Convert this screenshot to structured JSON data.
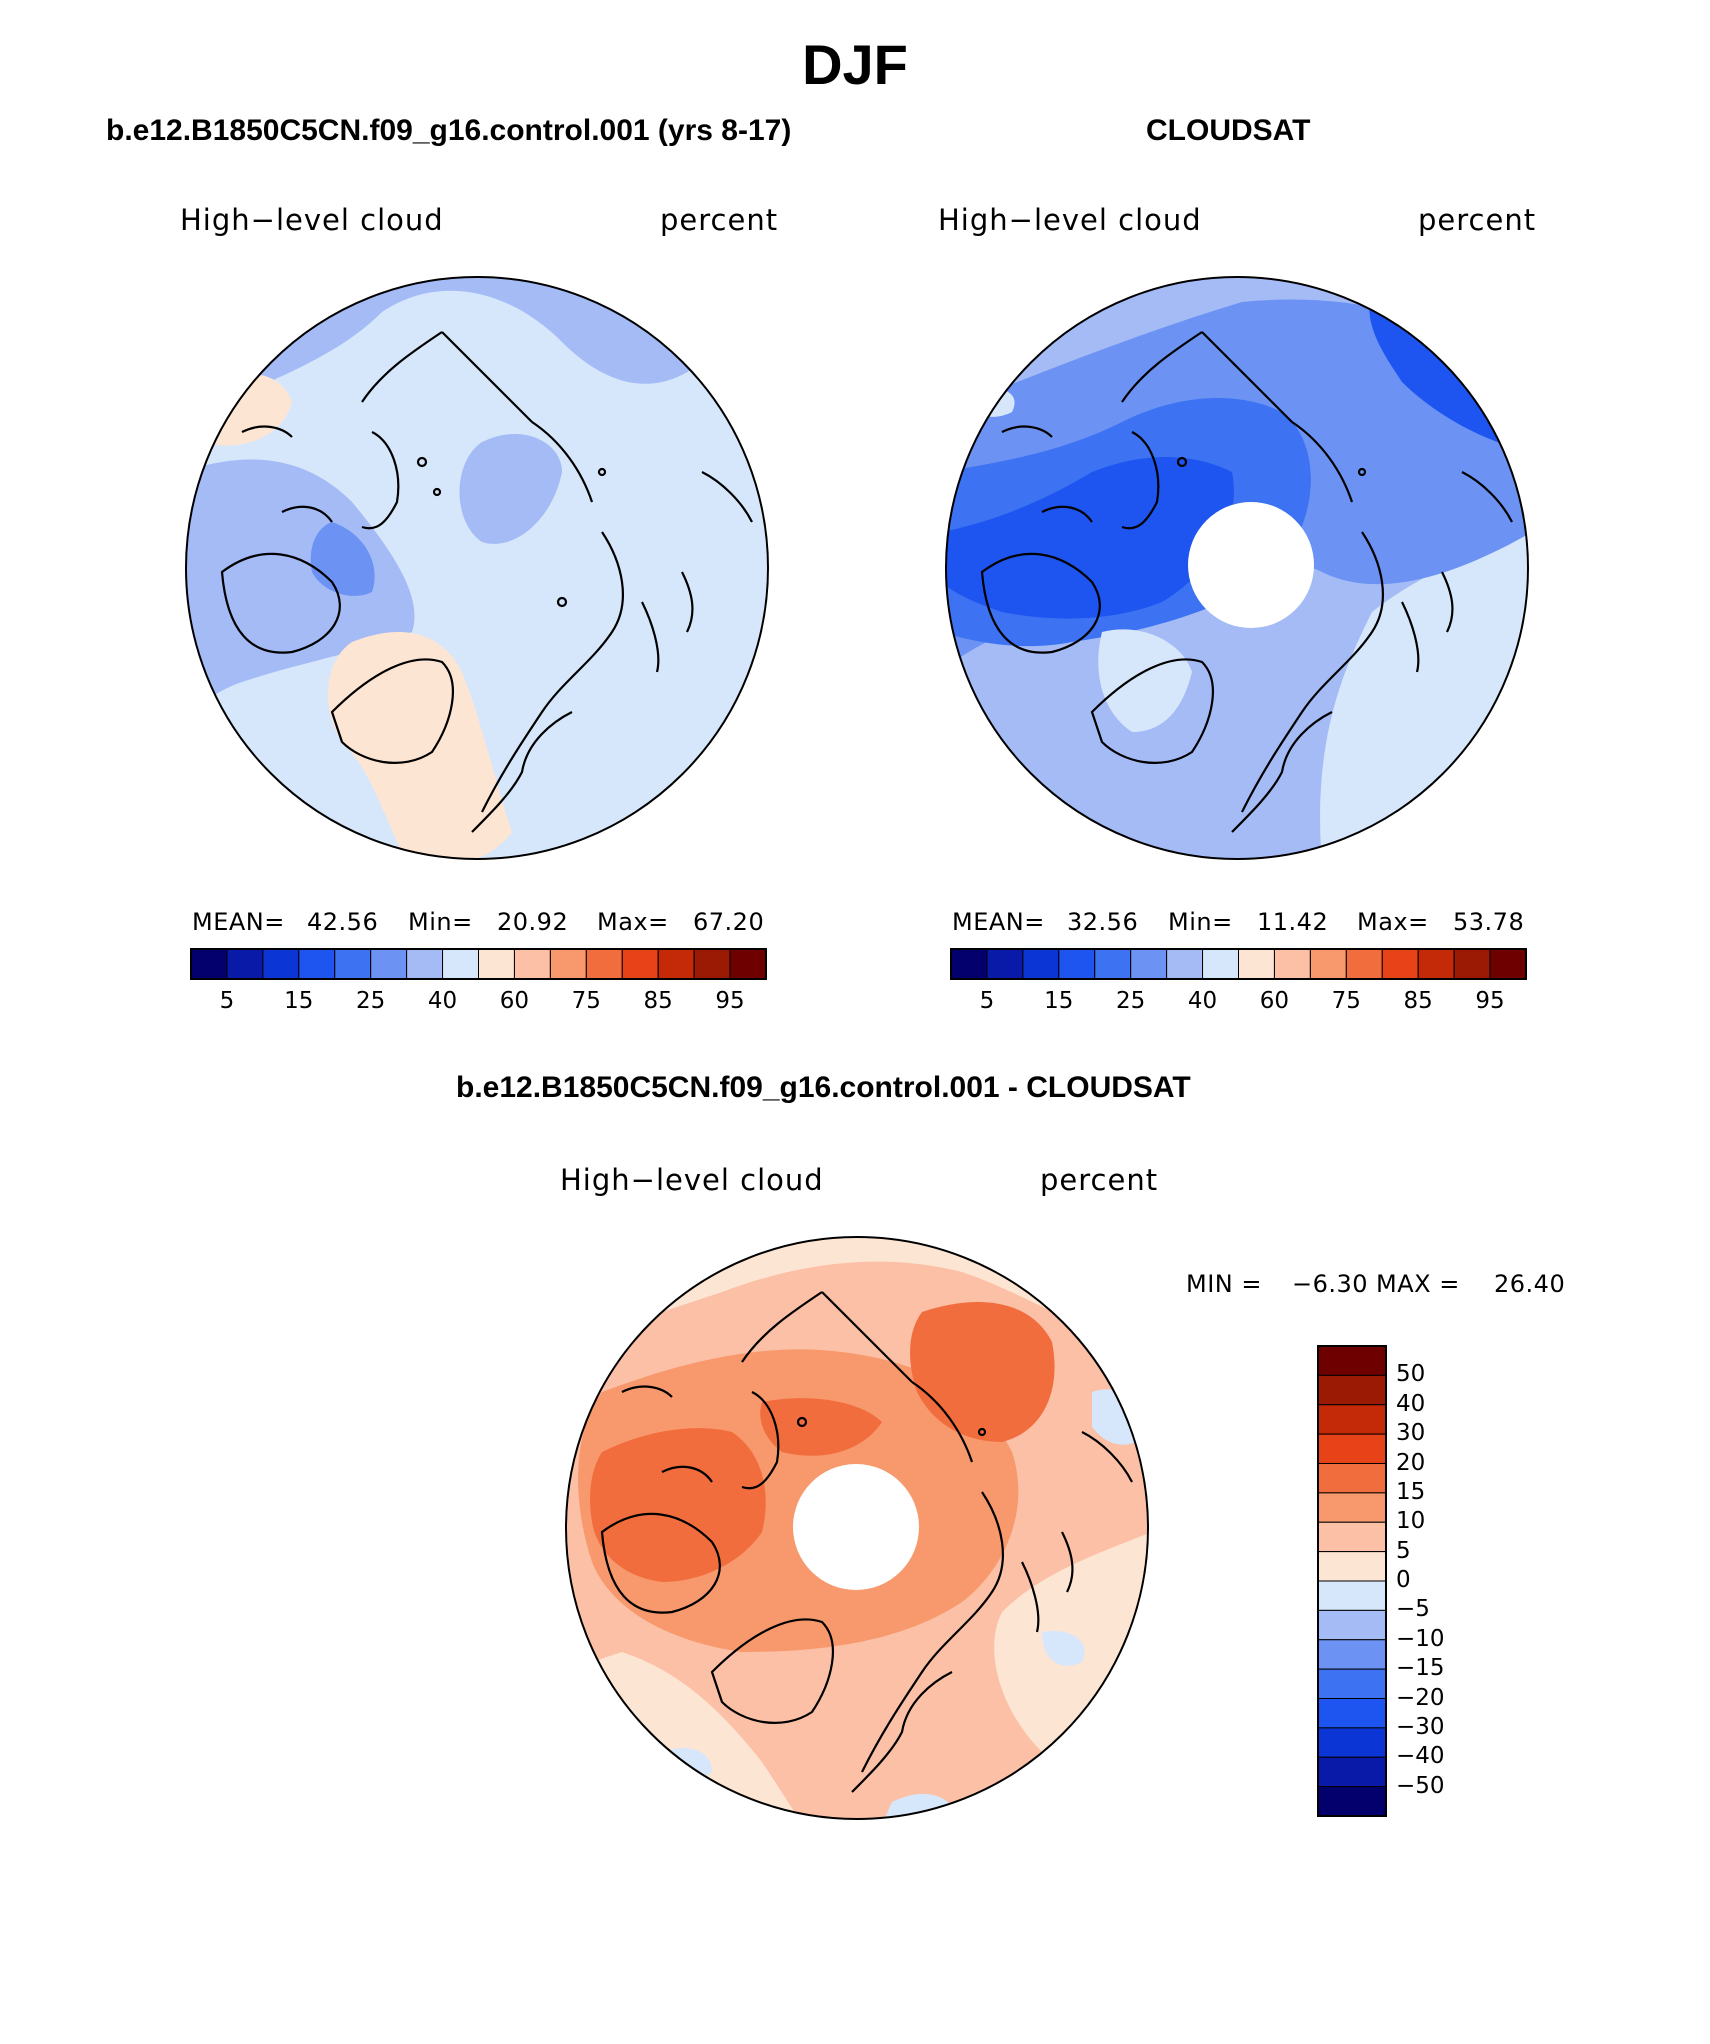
{
  "figure_title": "DJF",
  "panels": {
    "model": {
      "title": "b.e12.B1850C5CN.f09_g16.control.001 (yrs 8-17)",
      "left_label": "High−level cloud",
      "right_label": "percent",
      "mean_label": "MEAN=",
      "mean_value": "42.56",
      "min_label": "Min=",
      "min_value": "20.92",
      "max_label": "Max=",
      "max_value": "67.20"
    },
    "obs": {
      "title": "CLOUDSAT",
      "left_label": "High−level cloud",
      "right_label": "percent",
      "mean_label": "MEAN=",
      "mean_value": "32.56",
      "min_label": "Min=",
      "min_value": "11.42",
      "max_label": "Max=",
      "max_value": "53.78"
    },
    "diff": {
      "title": "b.e12.B1850C5CN.f09_g16.control.001 - CLOUDSAT",
      "left_label": "High−level cloud",
      "right_label": "percent",
      "min_label": "MIN =",
      "min_value": "−6.30",
      "max_label": "MAX =",
      "max_value": "26.40"
    }
  },
  "colorbar_horizontal": {
    "colors": [
      "#03006d",
      "#0a1aa8",
      "#0c35d6",
      "#1e55f0",
      "#3d73f2",
      "#6c93f4",
      "#a4bbf6",
      "#d6e7fb",
      "#fde5d4",
      "#fbc0a6",
      "#f7996d",
      "#f26d3d",
      "#e84218",
      "#c52a08",
      "#9b1a04",
      "#6e0000"
    ],
    "tick_labels": [
      "5",
      "15",
      "25",
      "40",
      "60",
      "75",
      "85",
      "95"
    ]
  },
  "colorbar_vertical": {
    "colors_top_to_bottom": [
      "#6e0000",
      "#9b1a04",
      "#c52a08",
      "#e84218",
      "#f26d3d",
      "#f7996d",
      "#fbc0a6",
      "#fde5d4",
      "#d6e7fb",
      "#a4bbf6",
      "#6c93f4",
      "#3d73f2",
      "#1e55f0",
      "#0c35d6",
      "#0a1aa8",
      "#03006d"
    ],
    "tick_labels": [
      "50",
      "40",
      "30",
      "20",
      "15",
      "10",
      "5",
      "0",
      "−5",
      "−10",
      "−15",
      "−20",
      "−30",
      "−40",
      "−50"
    ]
  },
  "map_fill_colors": {
    "model_base": "#d6e7fb",
    "model_mid": "#a4bbf6",
    "model_low": "#6c93f4",
    "model_warm": "#fde5d4",
    "obs_base": "#a4bbf6",
    "obs_mid": "#6c93f4",
    "obs_low": "#3d73f2",
    "obs_dark": "#1e55f0",
    "obs_light": "#d6e7fb",
    "diff_base": "#fbc0a6",
    "diff_mid": "#f7996d",
    "diff_high": "#f26d3d",
    "diff_light": "#fde5d4",
    "diff_blue": "#d6e7fb",
    "pole_hole": "#ffffff"
  }
}
